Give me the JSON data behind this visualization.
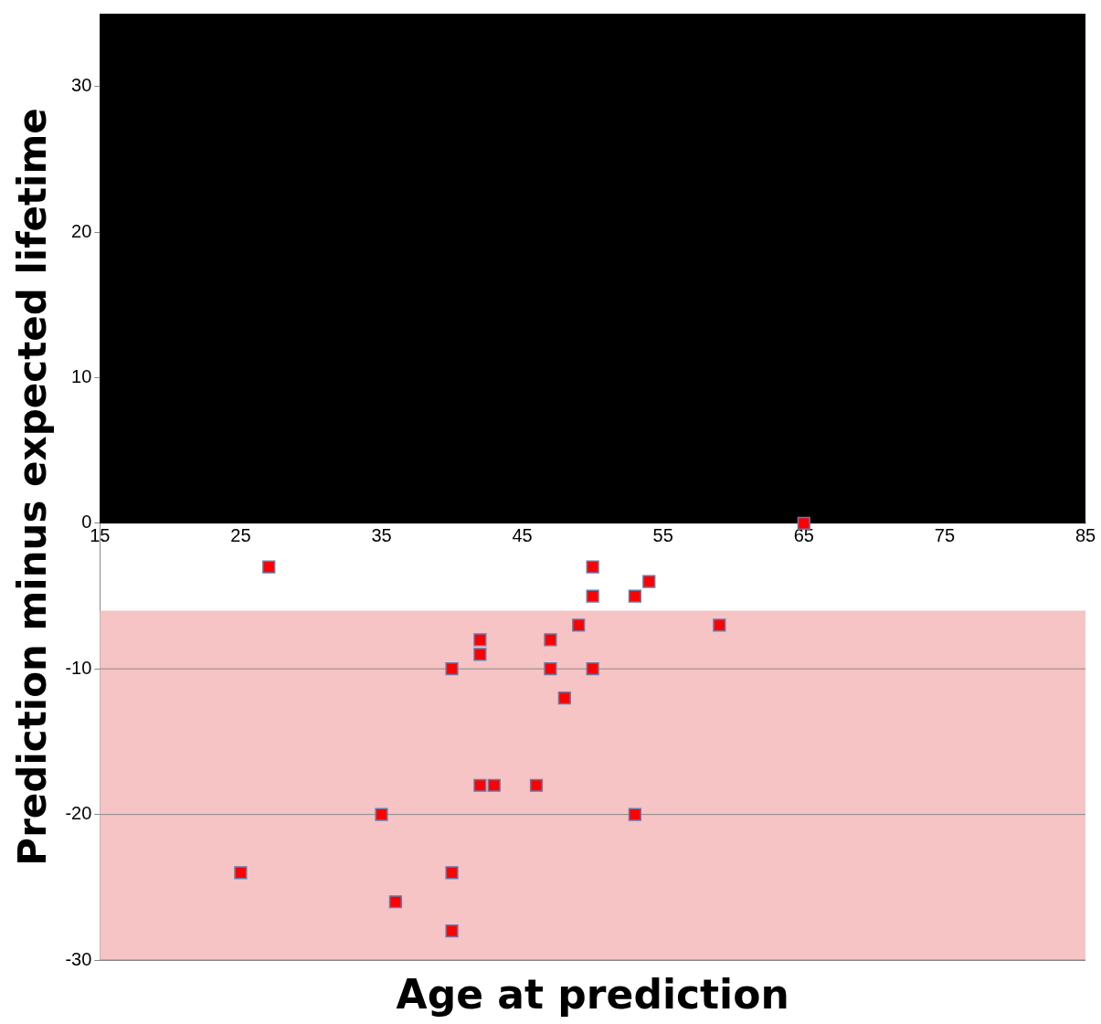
{
  "chart_data": {
    "type": "scatter",
    "xlabel": "Age at prediction",
    "ylabel": "Prediction minus expected lifetime",
    "x": [
      27,
      65,
      50,
      50,
      54,
      53,
      49,
      59,
      42,
      42,
      47,
      40,
      47,
      50,
      48,
      42,
      43,
      46,
      35,
      53,
      25,
      40,
      36,
      40
    ],
    "values": [
      -3,
      0,
      -3,
      -5,
      -4,
      -5,
      -7,
      -7,
      -8,
      -9,
      -8,
      -10,
      -10,
      -10,
      -12,
      -18,
      -18,
      -18,
      -20,
      -20,
      -24,
      -24,
      -26,
      -28
    ],
    "color": "#ff0000",
    "marker": "square",
    "xlim": [
      15,
      85
    ],
    "xticks": [
      15,
      25,
      35,
      45,
      55,
      65,
      75,
      85
    ],
    "ylim": [
      -30,
      35
    ],
    "yticks": [
      -30,
      -20,
      -10,
      0,
      10,
      20,
      30
    ],
    "grid": "y",
    "legend": false,
    "bands": [
      {
        "axis": "y",
        "from": 0,
        "to": 35,
        "color": "#000000"
      },
      {
        "axis": "y",
        "from": -30,
        "to": -6,
        "color": "#f6c4c4"
      }
    ]
  }
}
